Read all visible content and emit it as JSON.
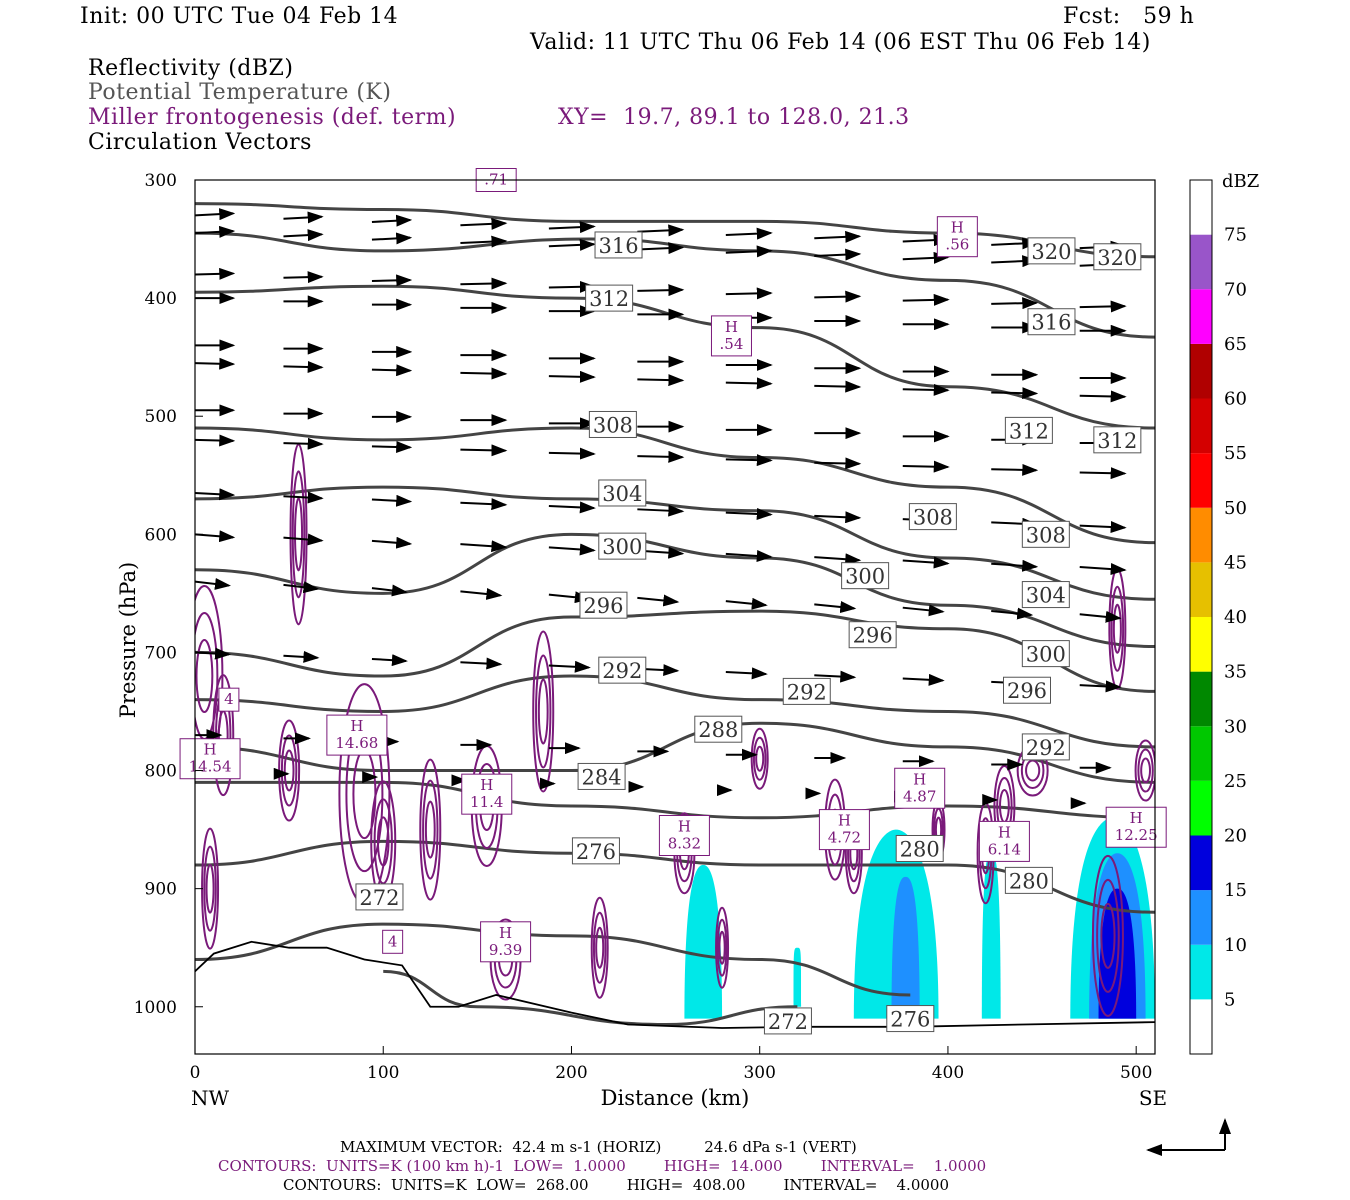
{
  "header": {
    "init": "Init: 00 UTC Tue 04 Feb 14",
    "fcst": "Fcst:   59 h",
    "valid": "Valid: 11 UTC Thu 06 Feb 14 (06 EST Thu 06 Feb 14)",
    "field1": "Reflectivity (dBZ)",
    "field2": "Potential Temperature (K)",
    "field3": "Miller frontogenesis (def. term)",
    "xy": "XY=  19.7, 89.1 to 128.0, 21.3",
    "field4": "Circulation Vectors"
  },
  "footer": {
    "maxvec": "MAXIMUM VECTOR:  42.4 m s-1 (HORIZ)         24.6 dPa s-1 (VERT)",
    "contours1": "CONTOURS:  UNITS=K (100 km h)-1  LOW=  1.0000        HIGH=  14.000        INTERVAL=    1.0000",
    "contours2": "CONTOURS:  UNITS=K  LOW=  268.00        HIGH=  408.00        INTERVAL=    4.0000"
  },
  "colors": {
    "theta": "#444444",
    "frontogenesis": "#7a1a7a",
    "vectors": "#000000"
  },
  "chart_data": {
    "type": "cross-section",
    "xlabel": "Distance (km)",
    "ylabel": "Pressure (hPa)",
    "x_left_label": "NW",
    "x_right_label": "SE",
    "xlim": [
      0,
      510
    ],
    "ylim": [
      1040,
      300
    ],
    "x_ticks": [
      0,
      100,
      200,
      300,
      400,
      500
    ],
    "y_ticks": [
      300,
      400,
      500,
      600,
      700,
      800,
      900,
      1000
    ],
    "colorbar": {
      "unit": "dBZ",
      "levels": [
        5,
        10,
        15,
        20,
        25,
        30,
        35,
        40,
        45,
        50,
        55,
        60,
        65,
        70,
        75
      ],
      "colors": [
        "#ffffff",
        "#00e8e8",
        "#1e90ff",
        "#0000dd",
        "#00ff00",
        "#00c800",
        "#008800",
        "#ffff00",
        "#e6c000",
        "#ff8c00",
        "#ff0000",
        "#d40000",
        "#b00000",
        "#ff00ff",
        "#9955c9",
        "#ffffff"
      ]
    },
    "theta_contours": [
      {
        "label": "320",
        "points": [
          [
            0,
            320
          ],
          [
            100,
            325
          ],
          [
            200,
            335
          ],
          [
            300,
            335
          ],
          [
            400,
            345
          ],
          [
            510,
            365
          ]
        ]
      },
      {
        "label": "316",
        "points": [
          [
            0,
            345
          ],
          [
            100,
            360
          ],
          [
            210,
            350
          ],
          [
            300,
            360
          ],
          [
            400,
            385
          ],
          [
            510,
            433
          ]
        ]
      },
      {
        "label": "312",
        "points": [
          [
            0,
            395
          ],
          [
            100,
            390
          ],
          [
            200,
            400
          ],
          [
            300,
            425
          ],
          [
            400,
            475
          ],
          [
            510,
            510
          ]
        ]
      },
      {
        "label": "308",
        "points": [
          [
            0,
            510
          ],
          [
            100,
            520
          ],
          [
            200,
            510
          ],
          [
            300,
            535
          ],
          [
            400,
            560
          ],
          [
            510,
            607
          ]
        ]
      },
      {
        "label": "304",
        "points": [
          [
            0,
            570
          ],
          [
            100,
            560
          ],
          [
            200,
            570
          ],
          [
            300,
            580
          ],
          [
            400,
            620
          ],
          [
            510,
            655
          ]
        ]
      },
      {
        "label": "300",
        "points": [
          [
            0,
            630
          ],
          [
            100,
            650
          ],
          [
            200,
            600
          ],
          [
            300,
            620
          ],
          [
            400,
            660
          ],
          [
            510,
            695
          ]
        ]
      },
      {
        "label": "296",
        "points": [
          [
            0,
            700
          ],
          [
            100,
            720
          ],
          [
            200,
            670
          ],
          [
            300,
            665
          ],
          [
            400,
            680
          ],
          [
            510,
            733
          ]
        ]
      },
      {
        "label": "292",
        "points": [
          [
            0,
            740
          ],
          [
            100,
            750
          ],
          [
            200,
            720
          ],
          [
            300,
            740
          ],
          [
            400,
            750
          ],
          [
            510,
            780
          ]
        ]
      },
      {
        "label": "288",
        "points": [
          [
            0,
            780
          ],
          [
            100,
            800
          ],
          [
            200,
            800
          ],
          [
            300,
            760
          ],
          [
            400,
            780
          ],
          [
            510,
            810
          ]
        ]
      },
      {
        "label": "284",
        "points": [
          [
            0,
            810
          ],
          [
            100,
            810
          ],
          [
            200,
            830
          ],
          [
            300,
            840
          ],
          [
            400,
            830
          ],
          [
            510,
            840
          ]
        ]
      },
      {
        "label": "280",
        "points": [
          [
            0,
            880
          ],
          [
            100,
            860
          ],
          [
            200,
            870
          ],
          [
            300,
            880
          ],
          [
            400,
            880
          ],
          [
            510,
            920
          ]
        ]
      },
      {
        "label": "276",
        "points": [
          [
            0,
            960
          ],
          [
            100,
            930
          ],
          [
            200,
            940
          ],
          [
            300,
            960
          ],
          [
            380,
            990
          ]
        ]
      },
      {
        "label": "272",
        "points": [
          [
            100,
            970
          ],
          [
            150,
            1000
          ],
          [
            250,
            1015
          ],
          [
            320,
            1000
          ]
        ]
      }
    ],
    "theta_labels": [
      {
        "text": "316",
        "x": 225,
        "p": 355
      },
      {
        "text": "312",
        "x": 220,
        "p": 400
      },
      {
        "text": "308",
        "x": 222,
        "p": 507
      },
      {
        "text": "304",
        "x": 227,
        "p": 565
      },
      {
        "text": "300",
        "x": 227,
        "p": 610
      },
      {
        "text": "296",
        "x": 217,
        "p": 660
      },
      {
        "text": "292",
        "x": 227,
        "p": 715
      },
      {
        "text": "288",
        "x": 278,
        "p": 765
      },
      {
        "text": "284",
        "x": 216,
        "p": 805
      },
      {
        "text": "276",
        "x": 213,
        "p": 868
      },
      {
        "text": "272",
        "x": 315,
        "p": 1012
      },
      {
        "text": "276",
        "x": 380,
        "p": 1010
      },
      {
        "text": "280",
        "x": 385,
        "p": 866
      },
      {
        "text": "280",
        "x": 443,
        "p": 893
      },
      {
        "text": "292",
        "x": 325,
        "p": 733
      },
      {
        "text": "296",
        "x": 360,
        "p": 685
      },
      {
        "text": "300",
        "x": 356,
        "p": 635
      },
      {
        "text": "308",
        "x": 392,
        "p": 585
      },
      {
        "text": "316",
        "x": 455,
        "p": 420
      },
      {
        "text": "320",
        "x": 455,
        "p": 360
      },
      {
        "text": "320",
        "x": 490,
        "p": 365
      },
      {
        "text": "312",
        "x": 443,
        "p": 512
      },
      {
        "text": "312",
        "x": 490,
        "p": 520
      },
      {
        "text": "308",
        "x": 452,
        "p": 600
      },
      {
        "text": "304",
        "x": 452,
        "p": 651
      },
      {
        "text": "300",
        "x": 452,
        "p": 701
      },
      {
        "text": "296",
        "x": 442,
        "p": 732
      },
      {
        "text": "292",
        "x": 452,
        "p": 780
      },
      {
        "text": "272",
        "x": 98,
        "p": 907
      }
    ],
    "frontogenesis_maxima": [
      {
        "text": "H\n14.54",
        "x": 8,
        "p": 790
      },
      {
        "text": "4",
        "x": 18,
        "p": 740
      },
      {
        "text": "H\n14.68",
        "x": 86,
        "p": 770
      },
      {
        "text": "H\n11.4",
        "x": 155,
        "p": 820
      },
      {
        "text": "4",
        "x": 105,
        "p": 945
      },
      {
        "text": "H\n9.39",
        "x": 165,
        "p": 945
      },
      {
        "text": "H\n8.32",
        "x": 260,
        "p": 855
      },
      {
        "text": "H\n4.72",
        "x": 345,
        "p": 850
      },
      {
        "text": "H\n4.87",
        "x": 385,
        "p": 815
      },
      {
        "text": "H\n6.14",
        "x": 430,
        "p": 860
      },
      {
        "text": "H\n12.25",
        "x": 500,
        "p": 848
      },
      {
        "text": "H\n.54",
        "x": 285,
        "p": 432
      },
      {
        "text": "H\n.56",
        "x": 405,
        "p": 348
      },
      {
        "text": ".71",
        "x": 160,
        "p": 300
      }
    ],
    "reflectivity_cells": [
      {
        "x": [
          260,
          280
        ],
        "p_top": 880,
        "p_bot": 1010,
        "dbz": 5
      },
      {
        "x": [
          318,
          322
        ],
        "p_top": 950,
        "p_bot": 1000,
        "dbz": 5
      },
      {
        "x": [
          350,
          395
        ],
        "p_top": 850,
        "p_bot": 1010,
        "dbz": 5
      },
      {
        "x": [
          370,
          385
        ],
        "p_top": 890,
        "p_bot": 1010,
        "dbz": 10
      },
      {
        "x": [
          418,
          428
        ],
        "p_top": 870,
        "p_bot": 1010,
        "dbz": 5
      },
      {
        "x": [
          465,
          510
        ],
        "p_top": 840,
        "p_bot": 1010,
        "dbz": 5
      },
      {
        "x": [
          475,
          505
        ],
        "p_top": 870,
        "p_bot": 1010,
        "dbz": 10
      },
      {
        "x": [
          480,
          500
        ],
        "p_top": 900,
        "p_bot": 1010,
        "dbz": 15
      }
    ],
    "vectors_max": {
      "horiz": "42.4 m s-1",
      "vert": "24.6 dPa s-1"
    }
  }
}
